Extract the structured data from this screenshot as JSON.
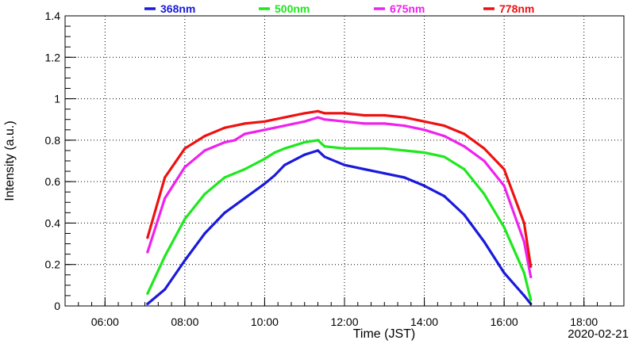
{
  "chart_data": {
    "type": "line",
    "xlabel": "Time (JST)",
    "ylabel": "Intensity (a.u.)",
    "date_label": "2020-02-21",
    "xlim_hours": [
      5.0,
      19.0
    ],
    "ylim": [
      0,
      1.4
    ],
    "x_ticks": [
      {
        "hour": 6,
        "label": "06:00"
      },
      {
        "hour": 8,
        "label": "08:00"
      },
      {
        "hour": 10,
        "label": "10:00"
      },
      {
        "hour": 12,
        "label": "12:00"
      },
      {
        "hour": 14,
        "label": "14:00"
      },
      {
        "hour": 16,
        "label": "16:00"
      },
      {
        "hour": 18,
        "label": "18:00"
      }
    ],
    "y_ticks": [
      {
        "value": 0,
        "label": "0"
      },
      {
        "value": 0.2,
        "label": "0.2"
      },
      {
        "value": 0.4,
        "label": "0.4"
      },
      {
        "value": 0.6,
        "label": "0.6"
      },
      {
        "value": 0.8,
        "label": "0.8"
      },
      {
        "value": 1.0,
        "label": "1"
      },
      {
        "value": 1.2,
        "label": "1.2"
      },
      {
        "value": 1.4,
        "label": "1.4"
      }
    ],
    "grid": true,
    "legend_position": "top",
    "series": [
      {
        "name": "368nm",
        "color": "#1a1adc",
        "x": [
          "07:04",
          "07:30",
          "08:00",
          "08:30",
          "09:00",
          "09:30",
          "10:00",
          "10:15",
          "10:30",
          "11:00",
          "11:20",
          "11:30",
          "12:00",
          "12:30",
          "13:00",
          "13:30",
          "14:00",
          "14:30",
          "15:00",
          "15:30",
          "16:00",
          "16:30",
          "16:40"
        ],
        "y": [
          0.01,
          0.08,
          0.22,
          0.35,
          0.45,
          0.52,
          0.59,
          0.63,
          0.68,
          0.73,
          0.75,
          0.72,
          0.68,
          0.66,
          0.64,
          0.62,
          0.58,
          0.53,
          0.44,
          0.31,
          0.16,
          0.05,
          0.01
        ]
      },
      {
        "name": "500nm",
        "color": "#1ee81e",
        "x": [
          "07:04",
          "07:30",
          "08:00",
          "08:30",
          "09:00",
          "09:15",
          "09:30",
          "10:00",
          "10:15",
          "10:30",
          "11:00",
          "11:20",
          "11:30",
          "12:00",
          "12:30",
          "13:00",
          "13:30",
          "14:00",
          "14:30",
          "15:00",
          "15:30",
          "16:00",
          "16:30",
          "16:40"
        ],
        "y": [
          0.06,
          0.24,
          0.42,
          0.54,
          0.62,
          0.64,
          0.66,
          0.71,
          0.74,
          0.76,
          0.79,
          0.8,
          0.77,
          0.76,
          0.76,
          0.76,
          0.75,
          0.74,
          0.72,
          0.66,
          0.54,
          0.38,
          0.16,
          0.03
        ]
      },
      {
        "name": "675nm",
        "color": "#ee22ee",
        "x": [
          "07:04",
          "07:30",
          "08:00",
          "08:30",
          "09:00",
          "09:15",
          "09:30",
          "10:00",
          "10:15",
          "10:30",
          "11:00",
          "11:20",
          "11:30",
          "12:00",
          "12:30",
          "13:00",
          "13:30",
          "14:00",
          "14:30",
          "15:00",
          "15:30",
          "16:00",
          "16:30",
          "16:40"
        ],
        "y": [
          0.26,
          0.52,
          0.67,
          0.75,
          0.79,
          0.8,
          0.83,
          0.85,
          0.86,
          0.87,
          0.89,
          0.91,
          0.9,
          0.89,
          0.88,
          0.88,
          0.87,
          0.85,
          0.82,
          0.77,
          0.7,
          0.58,
          0.31,
          0.14
        ]
      },
      {
        "name": "778nm",
        "color": "#ee1111",
        "x": [
          "07:04",
          "07:30",
          "08:00",
          "08:30",
          "09:00",
          "09:15",
          "09:30",
          "10:00",
          "10:15",
          "10:30",
          "11:00",
          "11:20",
          "11:30",
          "12:00",
          "12:30",
          "13:00",
          "13:30",
          "14:00",
          "14:30",
          "15:00",
          "15:30",
          "16:00",
          "16:30",
          "16:40"
        ],
        "y": [
          0.33,
          0.62,
          0.76,
          0.82,
          0.86,
          0.87,
          0.88,
          0.89,
          0.9,
          0.91,
          0.93,
          0.94,
          0.93,
          0.93,
          0.92,
          0.92,
          0.91,
          0.89,
          0.87,
          0.83,
          0.76,
          0.66,
          0.4,
          0.19
        ]
      }
    ]
  }
}
